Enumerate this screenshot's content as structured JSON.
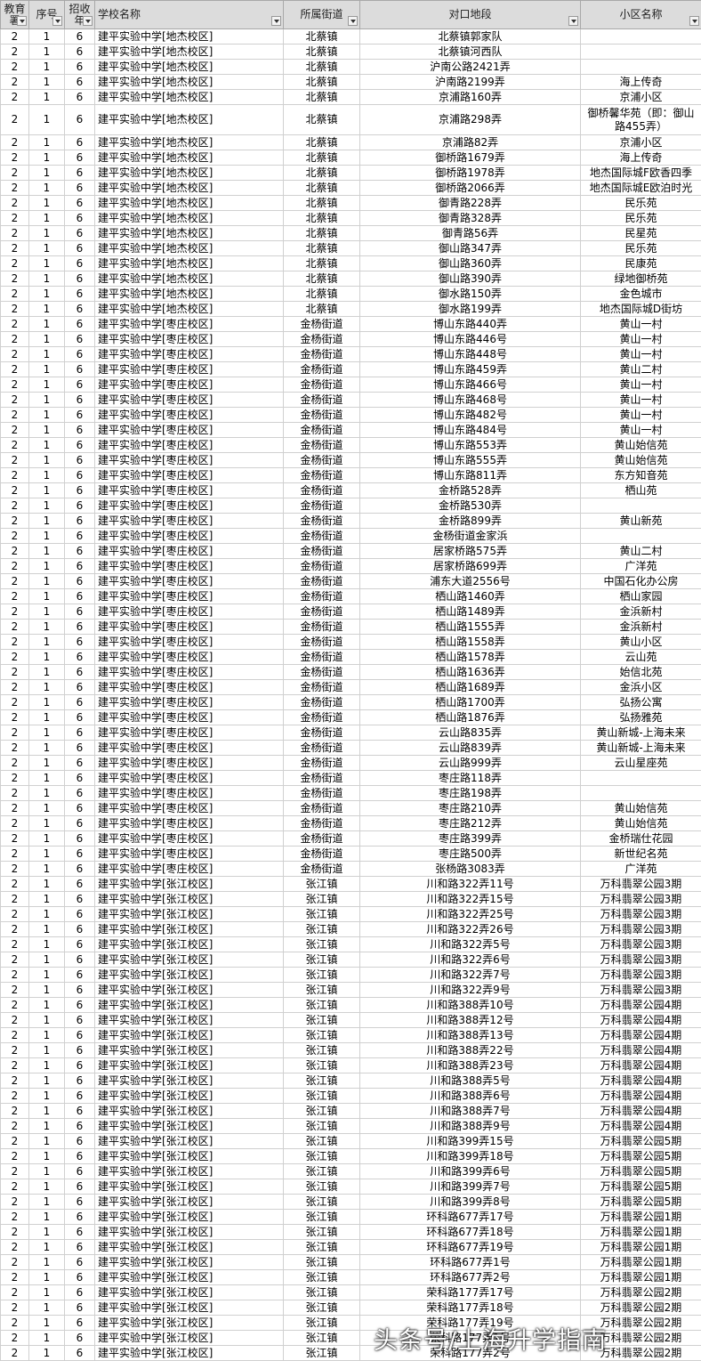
{
  "table": {
    "header": [
      "教育署",
      "序号",
      "招收年",
      "学校名称",
      "所属街道",
      "对口地段",
      "小区名称"
    ],
    "rows": [
      [
        2,
        1,
        6,
        "建平实验中学[地杰校区]",
        "北蔡镇",
        "北蔡镇郭家队",
        ""
      ],
      [
        2,
        1,
        6,
        "建平实验中学[地杰校区]",
        "北蔡镇",
        "北蔡镇河西队",
        ""
      ],
      [
        2,
        1,
        6,
        "建平实验中学[地杰校区]",
        "北蔡镇",
        "沪南公路2421弄",
        ""
      ],
      [
        2,
        1,
        6,
        "建平实验中学[地杰校区]",
        "北蔡镇",
        "沪南路2199弄",
        "海上传奇"
      ],
      [
        2,
        1,
        6,
        "建平实验中学[地杰校区]",
        "北蔡镇",
        "京浦路160弄",
        "京浦小区"
      ],
      [
        2,
        1,
        6,
        "建平实验中学[地杰校区]",
        "北蔡镇",
        "京浦路298弄",
        "御桥馨华苑（即：御山路455弄）"
      ],
      [
        2,
        1,
        6,
        "建平实验中学[地杰校区]",
        "北蔡镇",
        "京浦路82弄",
        "京浦小区"
      ],
      [
        2,
        1,
        6,
        "建平实验中学[地杰校区]",
        "北蔡镇",
        "御桥路1679弄",
        "海上传奇"
      ],
      [
        2,
        1,
        6,
        "建平实验中学[地杰校区]",
        "北蔡镇",
        "御桥路1978弄",
        "地杰国际城F欧香四季"
      ],
      [
        2,
        1,
        6,
        "建平实验中学[地杰校区]",
        "北蔡镇",
        "御桥路2066弄",
        "地杰国际城E欧泊时光"
      ],
      [
        2,
        1,
        6,
        "建平实验中学[地杰校区]",
        "北蔡镇",
        "御青路228弄",
        "民乐苑"
      ],
      [
        2,
        1,
        6,
        "建平实验中学[地杰校区]",
        "北蔡镇",
        "御青路328弄",
        "民乐苑"
      ],
      [
        2,
        1,
        6,
        "建平实验中学[地杰校区]",
        "北蔡镇",
        "御青路56弄",
        "民星苑"
      ],
      [
        2,
        1,
        6,
        "建平实验中学[地杰校区]",
        "北蔡镇",
        "御山路347弄",
        "民乐苑"
      ],
      [
        2,
        1,
        6,
        "建平实验中学[地杰校区]",
        "北蔡镇",
        "御山路360弄",
        "民康苑"
      ],
      [
        2,
        1,
        6,
        "建平实验中学[地杰校区]",
        "北蔡镇",
        "御山路390弄",
        "绿地御桥苑"
      ],
      [
        2,
        1,
        6,
        "建平实验中学[地杰校区]",
        "北蔡镇",
        "御水路150弄",
        "金色城市"
      ],
      [
        2,
        1,
        6,
        "建平实验中学[地杰校区]",
        "北蔡镇",
        "御水路199弄",
        "地杰国际城D街坊"
      ],
      [
        2,
        1,
        6,
        "建平实验中学[枣庄校区]",
        "金杨街道",
        "博山东路440弄",
        "黄山一村"
      ],
      [
        2,
        1,
        6,
        "建平实验中学[枣庄校区]",
        "金杨街道",
        "博山东路446号",
        "黄山一村"
      ],
      [
        2,
        1,
        6,
        "建平实验中学[枣庄校区]",
        "金杨街道",
        "博山东路448号",
        "黄山一村"
      ],
      [
        2,
        1,
        6,
        "建平实验中学[枣庄校区]",
        "金杨街道",
        "博山东路459弄",
        "黄山二村"
      ],
      [
        2,
        1,
        6,
        "建平实验中学[枣庄校区]",
        "金杨街道",
        "博山东路466号",
        "黄山一村"
      ],
      [
        2,
        1,
        6,
        "建平实验中学[枣庄校区]",
        "金杨街道",
        "博山东路468号",
        "黄山一村"
      ],
      [
        2,
        1,
        6,
        "建平实验中学[枣庄校区]",
        "金杨街道",
        "博山东路482号",
        "黄山一村"
      ],
      [
        2,
        1,
        6,
        "建平实验中学[枣庄校区]",
        "金杨街道",
        "博山东路484号",
        "黄山一村"
      ],
      [
        2,
        1,
        6,
        "建平实验中学[枣庄校区]",
        "金杨街道",
        "博山东路553弄",
        "黄山始信苑"
      ],
      [
        2,
        1,
        6,
        "建平实验中学[枣庄校区]",
        "金杨街道",
        "博山东路555弄",
        "黄山始信苑"
      ],
      [
        2,
        1,
        6,
        "建平实验中学[枣庄校区]",
        "金杨街道",
        "博山东路811弄",
        "东方知音苑"
      ],
      [
        2,
        1,
        6,
        "建平实验中学[枣庄校区]",
        "金杨街道",
        "金桥路528弄",
        "栖山苑"
      ],
      [
        2,
        1,
        6,
        "建平实验中学[枣庄校区]",
        "金杨街道",
        "金桥路530弄",
        ""
      ],
      [
        2,
        1,
        6,
        "建平实验中学[枣庄校区]",
        "金杨街道",
        "金桥路899弄",
        "黄山新苑"
      ],
      [
        2,
        1,
        6,
        "建平实验中学[枣庄校区]",
        "金杨街道",
        "金杨街道金家浜",
        ""
      ],
      [
        2,
        1,
        6,
        "建平实验中学[枣庄校区]",
        "金杨街道",
        "居家桥路575弄",
        "黄山二村"
      ],
      [
        2,
        1,
        6,
        "建平实验中学[枣庄校区]",
        "金杨街道",
        "居家桥路699弄",
        "广洋苑"
      ],
      [
        2,
        1,
        6,
        "建平实验中学[枣庄校区]",
        "金杨街道",
        "浦东大道2556号",
        "中国石化办公房"
      ],
      [
        2,
        1,
        6,
        "建平实验中学[枣庄校区]",
        "金杨街道",
        "栖山路1460弄",
        "栖山家园"
      ],
      [
        2,
        1,
        6,
        "建平实验中学[枣庄校区]",
        "金杨街道",
        "栖山路1489弄",
        "金浜新村"
      ],
      [
        2,
        1,
        6,
        "建平实验中学[枣庄校区]",
        "金杨街道",
        "栖山路1555弄",
        "金浜新村"
      ],
      [
        2,
        1,
        6,
        "建平实验中学[枣庄校区]",
        "金杨街道",
        "栖山路1558弄",
        "黄山小区"
      ],
      [
        2,
        1,
        6,
        "建平实验中学[枣庄校区]",
        "金杨街道",
        "栖山路1578弄",
        "云山苑"
      ],
      [
        2,
        1,
        6,
        "建平实验中学[枣庄校区]",
        "金杨街道",
        "栖山路1636弄",
        "始信北苑"
      ],
      [
        2,
        1,
        6,
        "建平实验中学[枣庄校区]",
        "金杨街道",
        "栖山路1689弄",
        "金浜小区"
      ],
      [
        2,
        1,
        6,
        "建平实验中学[枣庄校区]",
        "金杨街道",
        "栖山路1700弄",
        "弘扬公寓"
      ],
      [
        2,
        1,
        6,
        "建平实验中学[枣庄校区]",
        "金杨街道",
        "栖山路1876弄",
        "弘扬雅苑"
      ],
      [
        2,
        1,
        6,
        "建平实验中学[枣庄校区]",
        "金杨街道",
        "云山路835弄",
        "黄山新城-上海未来"
      ],
      [
        2,
        1,
        6,
        "建平实验中学[枣庄校区]",
        "金杨街道",
        "云山路839弄",
        "黄山新城-上海未来"
      ],
      [
        2,
        1,
        6,
        "建平实验中学[枣庄校区]",
        "金杨街道",
        "云山路999弄",
        "云山星座苑"
      ],
      [
        2,
        1,
        6,
        "建平实验中学[枣庄校区]",
        "金杨街道",
        "枣庄路118弄",
        ""
      ],
      [
        2,
        1,
        6,
        "建平实验中学[枣庄校区]",
        "金杨街道",
        "枣庄路198弄",
        ""
      ],
      [
        2,
        1,
        6,
        "建平实验中学[枣庄校区]",
        "金杨街道",
        "枣庄路210弄",
        "黄山始信苑"
      ],
      [
        2,
        1,
        6,
        "建平实验中学[枣庄校区]",
        "金杨街道",
        "枣庄路212弄",
        "黄山始信苑"
      ],
      [
        2,
        1,
        6,
        "建平实验中学[枣庄校区]",
        "金杨街道",
        "枣庄路399弄",
        "金桥瑞仕花园"
      ],
      [
        2,
        1,
        6,
        "建平实验中学[枣庄校区]",
        "金杨街道",
        "枣庄路500弄",
        "新世纪名苑"
      ],
      [
        2,
        1,
        6,
        "建平实验中学[枣庄校区]",
        "金杨街道",
        "张杨路3083弄",
        "广洋苑"
      ],
      [
        2,
        1,
        6,
        "建平实验中学[张江校区]",
        "张江镇",
        "川和路322弄11号",
        "万科翡翠公园3期"
      ],
      [
        2,
        1,
        6,
        "建平实验中学[张江校区]",
        "张江镇",
        "川和路322弄15号",
        "万科翡翠公园3期"
      ],
      [
        2,
        1,
        6,
        "建平实验中学[张江校区]",
        "张江镇",
        "川和路322弄25号",
        "万科翡翠公园3期"
      ],
      [
        2,
        1,
        6,
        "建平实验中学[张江校区]",
        "张江镇",
        "川和路322弄26号",
        "万科翡翠公园3期"
      ],
      [
        2,
        1,
        6,
        "建平实验中学[张江校区]",
        "张江镇",
        "川和路322弄5号",
        "万科翡翠公园3期"
      ],
      [
        2,
        1,
        6,
        "建平实验中学[张江校区]",
        "张江镇",
        "川和路322弄6号",
        "万科翡翠公园3期"
      ],
      [
        2,
        1,
        6,
        "建平实验中学[张江校区]",
        "张江镇",
        "川和路322弄7号",
        "万科翡翠公园3期"
      ],
      [
        2,
        1,
        6,
        "建平实验中学[张江校区]",
        "张江镇",
        "川和路322弄9号",
        "万科翡翠公园3期"
      ],
      [
        2,
        1,
        6,
        "建平实验中学[张江校区]",
        "张江镇",
        "川和路388弄10号",
        "万科翡翠公园4期"
      ],
      [
        2,
        1,
        6,
        "建平实验中学[张江校区]",
        "张江镇",
        "川和路388弄12号",
        "万科翡翠公园4期"
      ],
      [
        2,
        1,
        6,
        "建平实验中学[张江校区]",
        "张江镇",
        "川和路388弄13号",
        "万科翡翠公园4期"
      ],
      [
        2,
        1,
        6,
        "建平实验中学[张江校区]",
        "张江镇",
        "川和路388弄22号",
        "万科翡翠公园4期"
      ],
      [
        2,
        1,
        6,
        "建平实验中学[张江校区]",
        "张江镇",
        "川和路388弄23号",
        "万科翡翠公园4期"
      ],
      [
        2,
        1,
        6,
        "建平实验中学[张江校区]",
        "张江镇",
        "川和路388弄5号",
        "万科翡翠公园4期"
      ],
      [
        2,
        1,
        6,
        "建平实验中学[张江校区]",
        "张江镇",
        "川和路388弄6号",
        "万科翡翠公园4期"
      ],
      [
        2,
        1,
        6,
        "建平实验中学[张江校区]",
        "张江镇",
        "川和路388弄7号",
        "万科翡翠公园4期"
      ],
      [
        2,
        1,
        6,
        "建平实验中学[张江校区]",
        "张江镇",
        "川和路388弄9号",
        "万科翡翠公园4期"
      ],
      [
        2,
        1,
        6,
        "建平实验中学[张江校区]",
        "张江镇",
        "川和路399弄15号",
        "万科翡翠公园5期"
      ],
      [
        2,
        1,
        6,
        "建平实验中学[张江校区]",
        "张江镇",
        "川和路399弄18号",
        "万科翡翠公园5期"
      ],
      [
        2,
        1,
        6,
        "建平实验中学[张江校区]",
        "张江镇",
        "川和路399弄6号",
        "万科翡翠公园5期"
      ],
      [
        2,
        1,
        6,
        "建平实验中学[张江校区]",
        "张江镇",
        "川和路399弄7号",
        "万科翡翠公园5期"
      ],
      [
        2,
        1,
        6,
        "建平实验中学[张江校区]",
        "张江镇",
        "川和路399弄8号",
        "万科翡翠公园5期"
      ],
      [
        2,
        1,
        6,
        "建平实验中学[张江校区]",
        "张江镇",
        "环科路677弄17号",
        "万科翡翠公园1期"
      ],
      [
        2,
        1,
        6,
        "建平实验中学[张江校区]",
        "张江镇",
        "环科路677弄18号",
        "万科翡翠公园1期"
      ],
      [
        2,
        1,
        6,
        "建平实验中学[张江校区]",
        "张江镇",
        "环科路677弄19号",
        "万科翡翠公园1期"
      ],
      [
        2,
        1,
        6,
        "建平实验中学[张江校区]",
        "张江镇",
        "环科路677弄1号",
        "万科翡翠公园1期"
      ],
      [
        2,
        1,
        6,
        "建平实验中学[张江校区]",
        "张江镇",
        "环科路677弄2号",
        "万科翡翠公园1期"
      ],
      [
        2,
        1,
        6,
        "建平实验中学[张江校区]",
        "张江镇",
        "荣科路177弄17号",
        "万科翡翠公园2期"
      ],
      [
        2,
        1,
        6,
        "建平实验中学[张江校区]",
        "张江镇",
        "荣科路177弄18号",
        "万科翡翠公园2期"
      ],
      [
        2,
        1,
        6,
        "建平实验中学[张江校区]",
        "张江镇",
        "荣科路177弄19号",
        "万科翡翠公园2期"
      ],
      [
        2,
        1,
        6,
        "建平实验中学[张江校区]",
        "张江镇",
        "荣科路177弄1号",
        "万科翡翠公园2期"
      ],
      [
        2,
        1,
        6,
        "建平实验中学[张江校区]",
        "张江镇",
        "荣科路177弄2号",
        "万科翡翠公园2期"
      ]
    ]
  },
  "watermark": "头条号/上海升学指南"
}
